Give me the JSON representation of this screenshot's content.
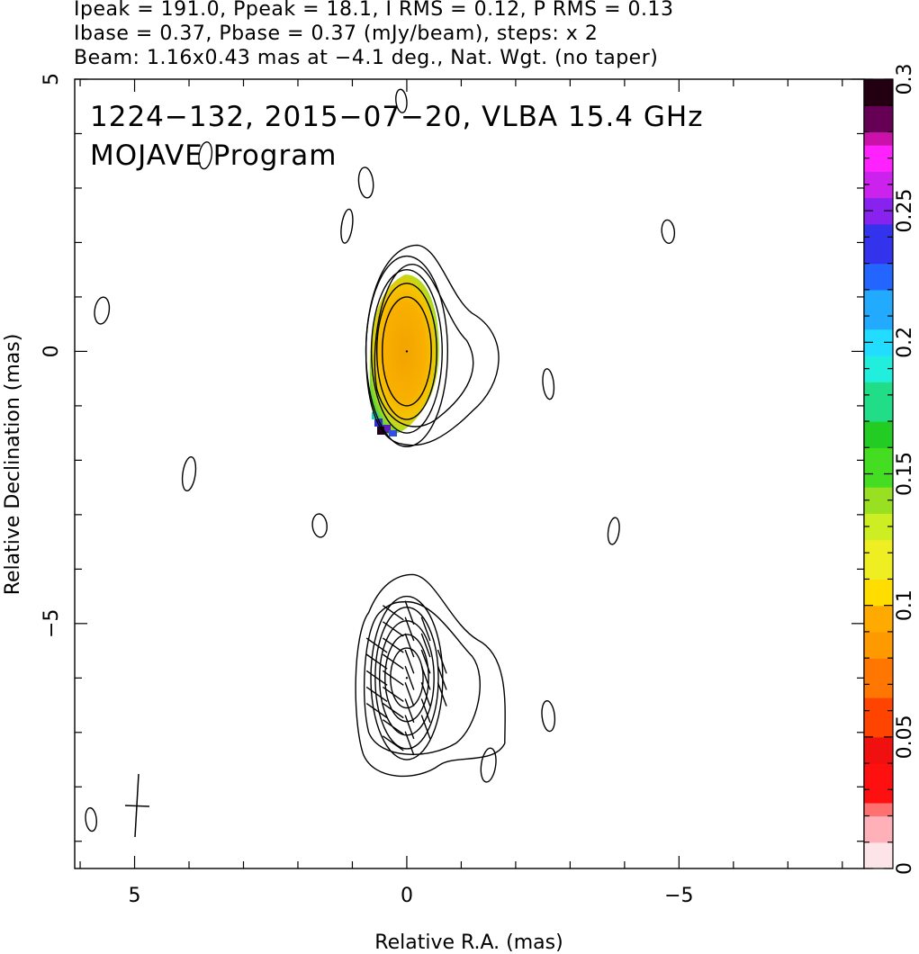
{
  "header": {
    "line1": "Ipeak = 191.0, Ppeak = 18.1, I RMS = 0.12, P RMS = 0.13",
    "line2": "Ibase = 0.37, Pbase = 0.37 (mJy/beam), steps: x 2",
    "line3": "Beam: 1.16x0.43 mas at −4.1 deg., Nat. Wgt. (no taper)"
  },
  "overlay": {
    "line1": "1224−132, 2015−07−20, VLBA 15.4 GHz",
    "line2": "MOJAVE Program"
  },
  "chart_data": {
    "type": "contour",
    "xlabel": "Relative R.A. (mas)",
    "ylabel": "Relative Declination (mas)",
    "xlim": [
      6.1,
      -8.4
    ],
    "ylim": [
      -9.5,
      5.0
    ],
    "x_ticks": [
      5,
      0,
      -5
    ],
    "x_tick_labels": [
      "5",
      "0",
      "−5"
    ],
    "y_ticks": [
      5,
      0,
      -5
    ],
    "y_tick_labels": [
      "5",
      "0",
      "−5"
    ],
    "colorbar": {
      "range": [
        0,
        0.3
      ],
      "ticks": [
        0,
        0.05,
        0.1,
        0.15,
        0.2,
        0.25,
        0.3
      ],
      "tick_labels": [
        "0",
        "0.05",
        "0.1",
        "0.15",
        "0.2",
        "0.25",
        "0.3"
      ]
    },
    "beam": {
      "major_mas": 1.16,
      "minor_mas": 0.43,
      "pa_deg": -4.1
    },
    "components": [
      {
        "x": 0.0,
        "y": 0.0,
        "contours": [
          [
            0.45,
            1.0
          ],
          [
            0.55,
            1.25
          ],
          [
            0.65,
            1.5
          ],
          [
            0.75,
            1.75
          ]
        ]
      },
      {
        "x": 0.0,
        "y": -6.0,
        "contours": [
          [
            0.3,
            0.55
          ],
          [
            0.4,
            0.8
          ],
          [
            0.5,
            1.05
          ],
          [
            0.58,
            1.3
          ],
          [
            0.66,
            1.5
          ]
        ]
      }
    ],
    "noise_islands": [
      {
        "x": 0.1,
        "y": 4.6
      },
      {
        "x": 3.7,
        "y": 3.6
      },
      {
        "x": 0.75,
        "y": 3.1
      },
      {
        "x": 1.1,
        "y": 2.3
      },
      {
        "x": -4.8,
        "y": 2.2
      },
      {
        "x": 5.6,
        "y": 0.75
      },
      {
        "x": -2.6,
        "y": -0.6
      },
      {
        "x": 4.0,
        "y": -2.25
      },
      {
        "x": 1.6,
        "y": -3.2
      },
      {
        "x": -3.8,
        "y": -3.3
      },
      {
        "x": -2.6,
        "y": -6.7
      },
      {
        "x": -1.5,
        "y": -7.6
      },
      {
        "x": 5.8,
        "y": -8.6
      }
    ]
  }
}
